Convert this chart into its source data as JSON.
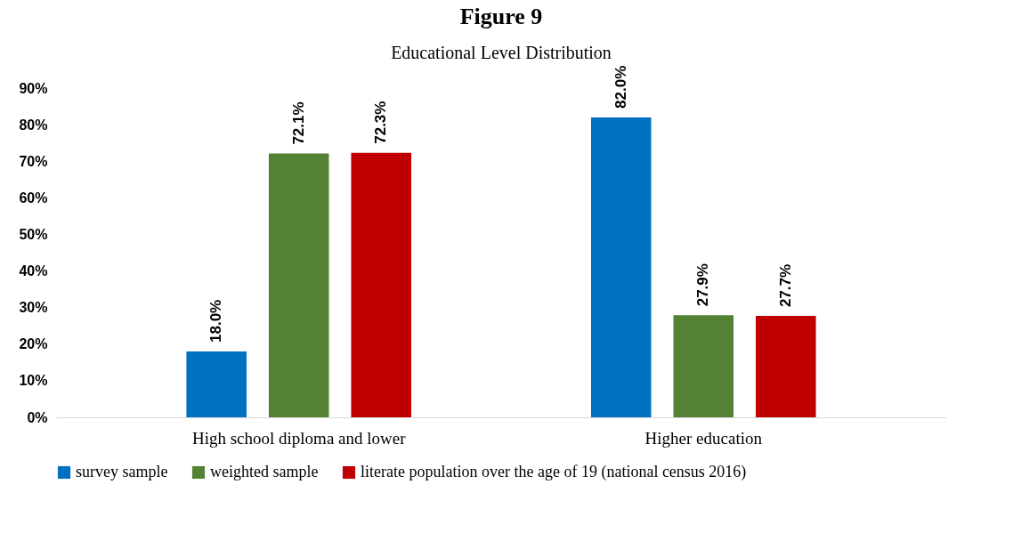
{
  "chart_data": {
    "type": "bar",
    "title": "Figure 9",
    "subtitle": "Educational Level Distribution",
    "categories": [
      "High school diploma  and lower",
      "Higher education"
    ],
    "series": [
      {
        "name": "survey sample",
        "color": "#0070c0",
        "values": [
          18.0,
          82.0
        ],
        "value_labels": [
          "18.0%",
          "82.0%"
        ]
      },
      {
        "name": "weighted sample",
        "color": "#548235",
        "values": [
          72.1,
          27.9
        ],
        "value_labels": [
          "72.1%",
          "27.9%"
        ]
      },
      {
        "name": "literate population over the age of 19 (national census 2016)",
        "color": "#c00000",
        "values": [
          72.3,
          27.7
        ],
        "value_labels": [
          "72.3%",
          "27.7%"
        ]
      }
    ],
    "ylim": [
      0,
      90
    ],
    "yticks": [
      {
        "value": 0,
        "label": "0%"
      },
      {
        "value": 10,
        "label": "10%"
      },
      {
        "value": 20,
        "label": "20%"
      },
      {
        "value": 30,
        "label": "30%"
      },
      {
        "value": 40,
        "label": "40%"
      },
      {
        "value": 50,
        "label": "50%"
      },
      {
        "value": 60,
        "label": "60%"
      },
      {
        "value": 70,
        "label": "70%"
      },
      {
        "value": 80,
        "label": "80%"
      },
      {
        "value": 90,
        "label": "90%"
      }
    ],
    "grid": false,
    "legend": "bottom"
  }
}
